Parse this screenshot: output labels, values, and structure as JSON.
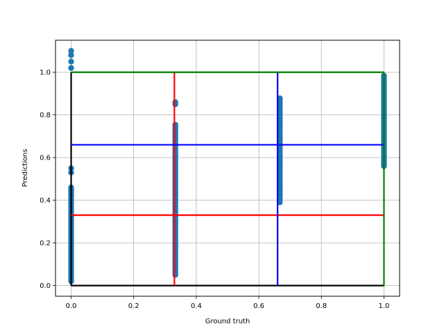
{
  "chart_data": {
    "type": "scatter",
    "title": "",
    "xlabel": "Ground truth",
    "ylabel": "Predictions",
    "xlim": [
      -0.05,
      1.05
    ],
    "ylim": [
      -0.05,
      1.15
    ],
    "xticks": [
      "0.0",
      "0.2",
      "0.4",
      "0.6",
      "0.8",
      "1.0"
    ],
    "yticks": [
      "0.0",
      "0.2",
      "0.4",
      "0.6",
      "0.8",
      "1.0"
    ],
    "grid": true,
    "colors": {
      "points": "#1f77b4",
      "black": "#000000",
      "red": "#ff0000",
      "blue": "#0000ff",
      "green": "#008000",
      "grid": "#b0b0b0"
    },
    "point_columns": [
      {
        "x": 0.0,
        "y_min": 0.02,
        "y_max": 0.46,
        "outliers": [
          0.53,
          0.55,
          1.02,
          1.05,
          1.08,
          1.1
        ]
      },
      {
        "x": 0.333,
        "y_min": 0.05,
        "y_max": 0.76,
        "outliers": [
          0.85,
          0.86
        ]
      },
      {
        "x": 0.667,
        "y_min": 0.39,
        "y_max": 0.88,
        "outliers": []
      },
      {
        "x": 1.0,
        "y_min": 0.56,
        "y_max": 0.99,
        "outliers": []
      }
    ],
    "reference_lines": [
      {
        "color": "black",
        "x": [
          0,
          0
        ],
        "y": [
          0,
          1
        ]
      },
      {
        "color": "black",
        "x": [
          0,
          1
        ],
        "y": [
          0,
          0
        ]
      },
      {
        "color": "red",
        "x": [
          0.33,
          0.33
        ],
        "y": [
          0,
          1
        ]
      },
      {
        "color": "red",
        "x": [
          0,
          1
        ],
        "y": [
          0.33,
          0.33
        ]
      },
      {
        "color": "blue",
        "x": [
          0.66,
          0.66
        ],
        "y": [
          0,
          1
        ]
      },
      {
        "color": "blue",
        "x": [
          0,
          1
        ],
        "y": [
          0.66,
          0.66
        ]
      },
      {
        "color": "green",
        "x": [
          0,
          1
        ],
        "y": [
          1,
          1
        ]
      },
      {
        "color": "green",
        "x": [
          1,
          1
        ],
        "y": [
          0,
          1
        ]
      }
    ]
  }
}
